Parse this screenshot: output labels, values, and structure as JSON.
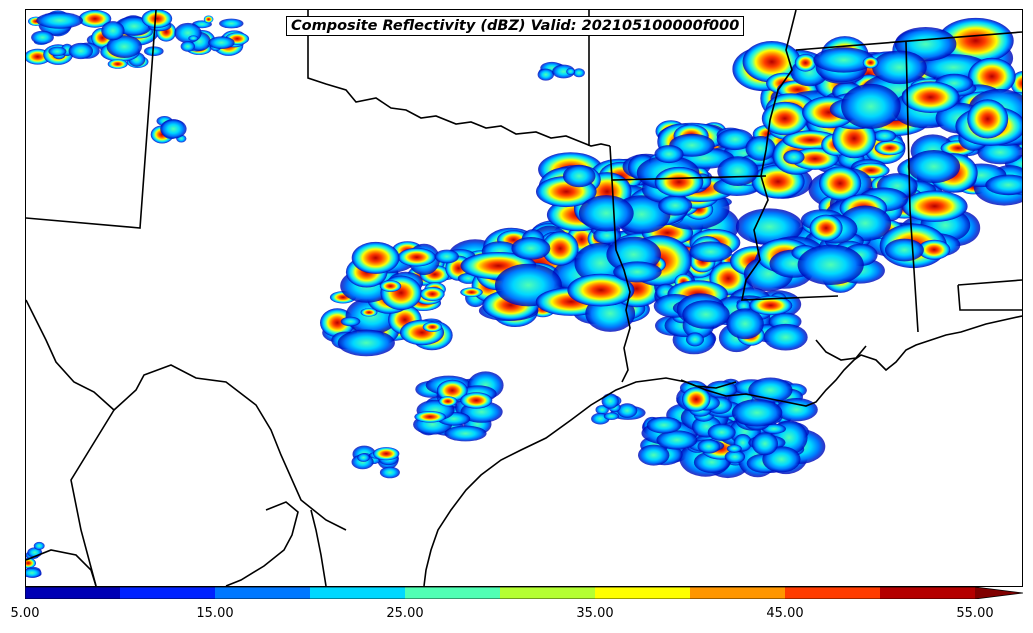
{
  "title": "Composite Reflectivity (dBZ) Valid: 202105100000f000",
  "colorbar": {
    "colors": [
      "#0000b4",
      "#0022ff",
      "#0078ff",
      "#00d8ff",
      "#50ffb4",
      "#b4ff32",
      "#ffff00",
      "#ff9600",
      "#ff3c00",
      "#b40000"
    ],
    "extend_color": "#800000",
    "min": 5,
    "max": 55,
    "step": 5,
    "tick_labels": [
      "5.00",
      "15.00",
      "25.00",
      "35.00",
      "45.00",
      "55.00"
    ],
    "tick_values": [
      5,
      15,
      25,
      35,
      45,
      55
    ]
  },
  "legend_title": "",
  "map": {
    "background": "#ffffff",
    "boundary_color": "#000000"
  }
}
